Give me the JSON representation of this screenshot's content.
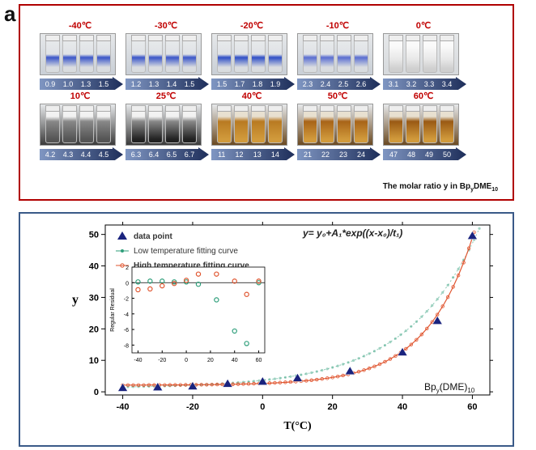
{
  "panel_a": {
    "label": "a",
    "caption": "The molar ratio y in Bp",
    "caption_sub1": "y",
    "caption_mid": "DME",
    "caption_sub2": "10",
    "groups": [
      {
        "temp": "-40℃",
        "ratios": [
          "0.9",
          "1.0",
          "1.3",
          "1.5"
        ],
        "color": "#3a56c8",
        "style": "blue"
      },
      {
        "temp": "-30℃",
        "ratios": [
          "1.2",
          "1.3",
          "1.4",
          "1.5"
        ],
        "color": "#3a56c8",
        "style": "blue"
      },
      {
        "temp": "-20℃",
        "ratios": [
          "1.5",
          "1.7",
          "1.8",
          "1.9"
        ],
        "color": "#2f4fc6",
        "style": "blue"
      },
      {
        "temp": "-10℃",
        "ratios": [
          "2.3",
          "2.4",
          "2.5",
          "2.6"
        ],
        "color": "#5a6ed0",
        "style": "light"
      },
      {
        "temp": "0℃",
        "ratios": [
          "3.1",
          "3.2",
          "3.3",
          "3.4"
        ],
        "color": "#dddddd",
        "style": "clear"
      },
      {
        "temp": "10℃",
        "ratios": [
          "4.2",
          "4.3",
          "4.4",
          "4.5"
        ],
        "color": "#555555",
        "style": "dark"
      },
      {
        "temp": "25℃",
        "ratios": [
          "6.3",
          "6.4",
          "6.5",
          "6.7"
        ],
        "color": "#222222",
        "style": "dark"
      },
      {
        "temp": "40℃",
        "ratios": [
          "11",
          "12",
          "13",
          "14"
        ],
        "color": "#b87a22",
        "style": "amber"
      },
      {
        "temp": "50℃",
        "ratios": [
          "21",
          "22",
          "23",
          "24"
        ],
        "color": "#a86418",
        "style": "amber"
      },
      {
        "temp": "60℃",
        "ratios": [
          "47",
          "48",
          "49",
          "50"
        ],
        "color": "#9a5a14",
        "style": "amber"
      }
    ]
  },
  "panel_b": {
    "label": "b",
    "equation": "y= y₀+A₁*exp((x-x₀)/t₁)",
    "compound": "Bp",
    "compound_sub1": "y",
    "compound_mid": "(DME)",
    "compound_sub2": "10"
  },
  "chart_data": [
    {
      "type": "scatter",
      "title": "",
      "xlabel": "T(°C)",
      "ylabel": "y",
      "xlim": [
        -45,
        65
      ],
      "ylim": [
        -1,
        53
      ],
      "xticks": [
        -40,
        -20,
        0,
        20,
        40,
        60
      ],
      "yticks": [
        0,
        10,
        20,
        30,
        40,
        50
      ],
      "legend": [
        "data point",
        "Low temperature fitting curve",
        "High temperature fitting curve"
      ],
      "series": [
        {
          "name": "data point",
          "x": [
            -40,
            -30,
            -20,
            -10,
            0,
            10,
            25,
            40,
            50,
            60
          ],
          "y": [
            1.2,
            1.4,
            1.7,
            2.5,
            3.2,
            4.3,
            6.5,
            12.5,
            22.5,
            49.5
          ],
          "color": "#1a237e"
        },
        {
          "name": "Low temperature fitting curve",
          "color": "#2e9e7a",
          "y0": 1.2,
          "A1": 0.35,
          "x0": -40,
          "t1": 20.5
        },
        {
          "name": "High temperature fitting curve",
          "color": "#e0552f",
          "y0": 2.1,
          "A1": 0.03,
          "x0": -40,
          "t1": 13.6
        }
      ]
    },
    {
      "type": "scatter",
      "title": "",
      "xlabel": "",
      "ylabel": "Regular Residual",
      "xlim": [
        -45,
        65
      ],
      "ylim": [
        -9,
        2
      ],
      "xticks": [
        -40,
        -20,
        0,
        20,
        40,
        60
      ],
      "yticks": [
        -8,
        -6,
        -4,
        -2,
        0,
        2
      ],
      "series": [
        {
          "name": "low residual",
          "x": [
            -40,
            -30,
            -20,
            -10,
            0,
            10,
            25,
            40,
            50,
            60
          ],
          "y": [
            0.1,
            0.2,
            0.2,
            0.1,
            0.1,
            -0.2,
            -2.2,
            -6.2,
            -7.8,
            0.0
          ],
          "color": "#2e9e7a"
        },
        {
          "name": "high residual",
          "x": [
            -40,
            -30,
            -20,
            -10,
            0,
            10,
            25,
            40,
            50,
            60
          ],
          "y": [
            -0.9,
            -0.8,
            -0.4,
            -0.1,
            0.3,
            1.1,
            1.1,
            0.2,
            -1.5,
            0.2
          ],
          "color": "#e0552f"
        }
      ]
    }
  ]
}
